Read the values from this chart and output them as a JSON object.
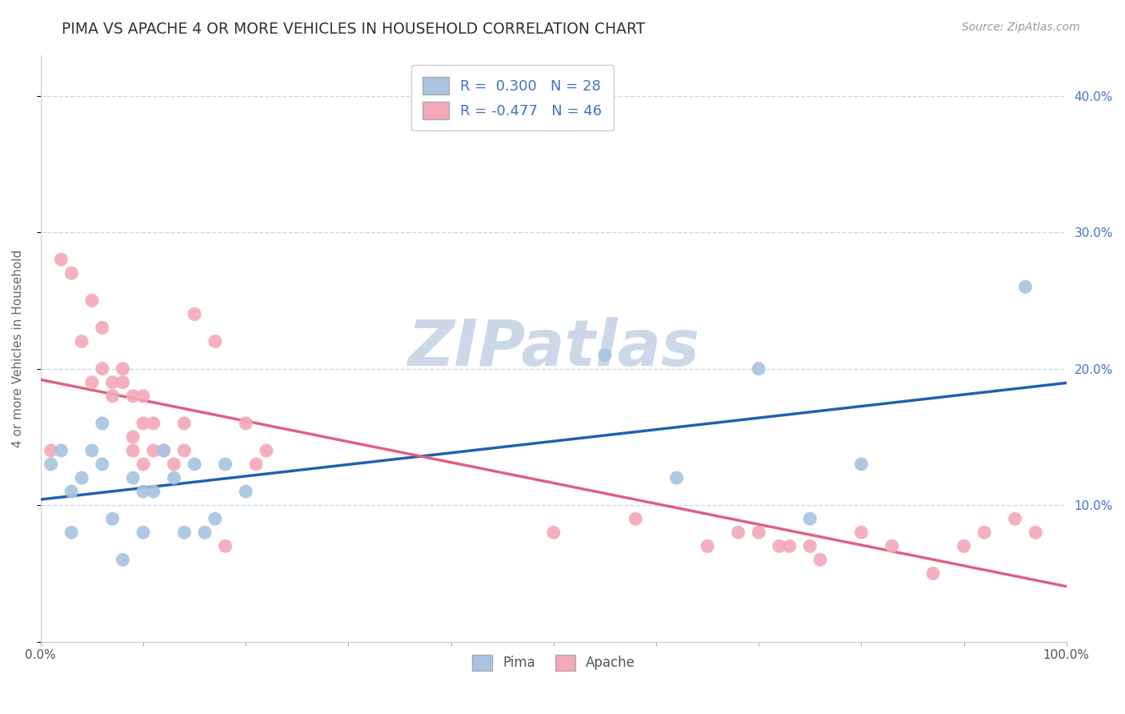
{
  "title": "PIMA VS APACHE 4 OR MORE VEHICLES IN HOUSEHOLD CORRELATION CHART",
  "ylabel": "4 or more Vehicles in Household",
  "source_text": "Source: ZipAtlas.com",
  "pima_R": 0.3,
  "pima_N": 28,
  "apache_R": -0.477,
  "apache_N": 46,
  "pima_color": "#a8c4e0",
  "apache_color": "#f4a8b8",
  "pima_line_color": "#2060b0",
  "apache_line_color": "#e06080",
  "watermark_color": "#ccd8e8",
  "background_color": "#ffffff",
  "xlim": [
    0,
    100
  ],
  "ylim": [
    0,
    43
  ],
  "ytick_positions": [
    0,
    10,
    20,
    30,
    40
  ],
  "ytick_labels_right": [
    "",
    "10.0%",
    "20.0%",
    "30.0%",
    "40.0%"
  ],
  "xtick_positions": [
    0,
    10,
    20,
    30,
    40,
    50,
    60,
    70,
    80,
    90,
    100
  ],
  "xtick_labels": [
    "0.0%",
    "",
    "",
    "",
    "",
    "",
    "",
    "",
    "",
    "",
    "100.0%"
  ],
  "grid_color": "#c8d8e8",
  "pima_x": [
    1,
    2,
    3,
    3,
    4,
    5,
    6,
    6,
    7,
    8,
    9,
    10,
    10,
    11,
    12,
    13,
    14,
    15,
    16,
    17,
    18,
    20,
    55,
    62,
    70,
    75,
    80,
    96
  ],
  "pima_y": [
    13,
    14,
    8,
    11,
    12,
    14,
    13,
    16,
    9,
    6,
    12,
    11,
    8,
    11,
    14,
    12,
    8,
    13,
    8,
    9,
    13,
    11,
    21,
    12,
    20,
    9,
    13,
    26
  ],
  "apache_x": [
    1,
    2,
    3,
    4,
    5,
    5,
    6,
    6,
    7,
    7,
    8,
    8,
    9,
    9,
    9,
    10,
    10,
    10,
    11,
    11,
    12,
    13,
    14,
    14,
    15,
    17,
    18,
    20,
    21,
    22,
    50,
    58,
    65,
    68,
    70,
    72,
    73,
    75,
    76,
    80,
    83,
    87,
    90,
    92,
    95,
    97
  ],
  "apache_y": [
    14,
    28,
    27,
    22,
    19,
    25,
    23,
    20,
    18,
    19,
    19,
    20,
    14,
    15,
    18,
    13,
    16,
    18,
    14,
    16,
    14,
    13,
    14,
    16,
    24,
    22,
    7,
    16,
    13,
    14,
    8,
    9,
    7,
    8,
    8,
    7,
    7,
    7,
    6,
    8,
    7,
    5,
    7,
    8,
    9,
    8
  ]
}
